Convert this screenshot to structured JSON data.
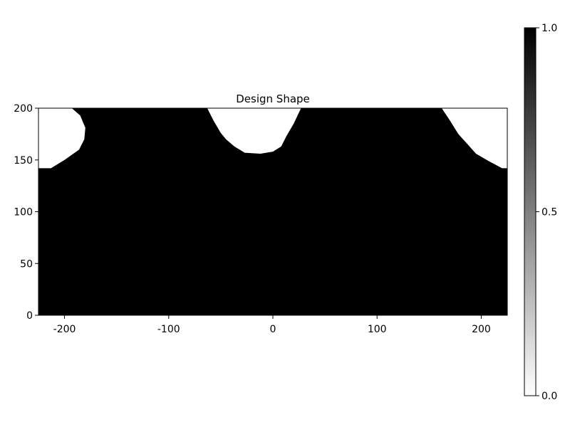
{
  "chart_data": {
    "type": "heatmap",
    "title": "Design Shape",
    "xlabel": "",
    "ylabel": "",
    "xlim": [
      -225,
      225
    ],
    "ylim": [
      0,
      200
    ],
    "x_ticks": [
      -200,
      -100,
      0,
      100,
      200
    ],
    "x_tick_labels": [
      "-200",
      "-100",
      "0",
      "100",
      "200"
    ],
    "y_ticks": [
      0,
      50,
      100,
      150,
      200
    ],
    "y_tick_labels": [
      "0",
      "50",
      "100",
      "150",
      "200"
    ],
    "colorbar": {
      "range": [
        0,
        1
      ],
      "ticks": [
        0,
        0.5,
        1
      ],
      "tick_labels": [
        "0.0",
        "0.5",
        "1.0"
      ],
      "colormap": "white-to-black",
      "low_color": "#ffffff",
      "high_color": "#000000"
    },
    "background_value": 1,
    "holes": [
      {
        "label": "left",
        "value": 0,
        "boundary": [
          [
            -225,
            200
          ],
          [
            -193,
            200
          ],
          [
            -185,
            193
          ],
          [
            -180,
            181
          ],
          [
            -181,
            170
          ],
          [
            -186,
            160
          ],
          [
            -200,
            150
          ],
          [
            -213,
            142
          ],
          [
            -225,
            142
          ]
        ]
      },
      {
        "label": "center",
        "value": 0,
        "boundary": [
          [
            -63,
            200
          ],
          [
            -57,
            188
          ],
          [
            -50,
            176
          ],
          [
            -45,
            170
          ],
          [
            -37,
            163
          ],
          [
            -27,
            157
          ],
          [
            -12,
            156
          ],
          [
            0,
            158
          ],
          [
            8,
            163
          ],
          [
            13,
            173
          ],
          [
            20,
            185
          ],
          [
            27,
            200
          ]
        ]
      },
      {
        "label": "right",
        "value": 0,
        "boundary": [
          [
            162,
            200
          ],
          [
            170,
            188
          ],
          [
            178,
            175
          ],
          [
            187,
            165
          ],
          [
            195,
            156
          ],
          [
            207,
            149
          ],
          [
            220,
            142
          ],
          [
            225,
            142
          ],
          [
            225,
            200
          ]
        ]
      }
    ]
  }
}
